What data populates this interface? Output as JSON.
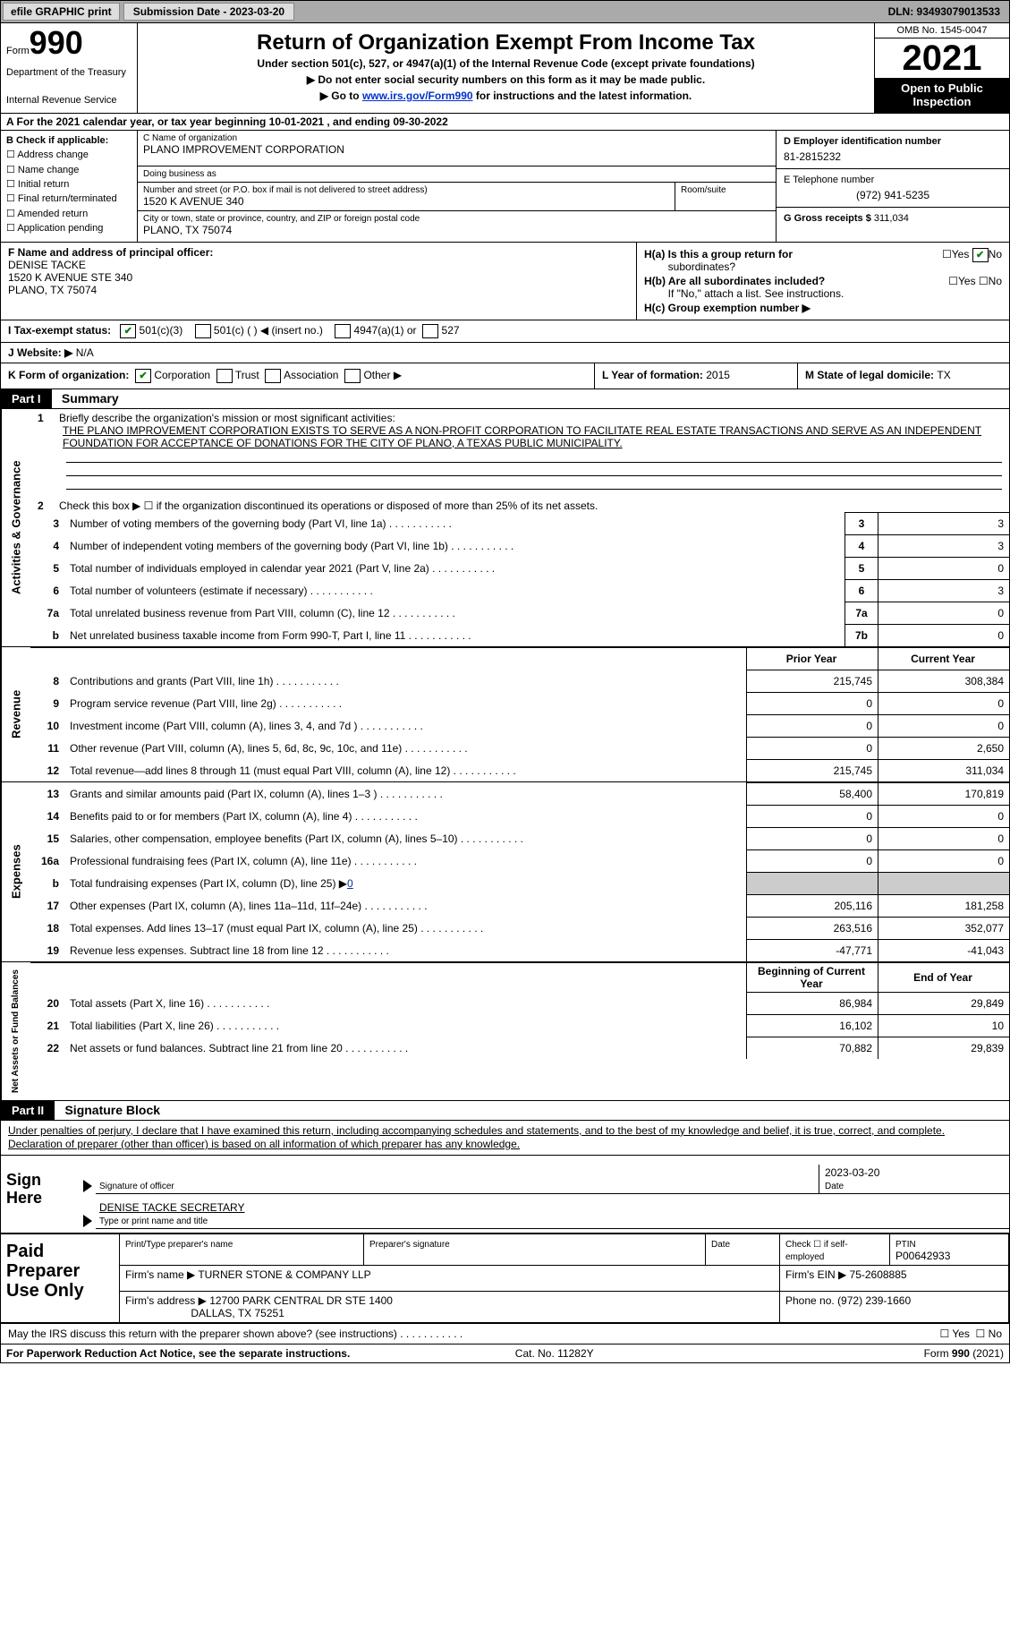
{
  "topbar": {
    "efile": "efile GRAPHIC print",
    "sub_date": "Submission Date - 2023-03-20",
    "dln": "DLN: 93493079013533"
  },
  "header": {
    "form_word": "Form",
    "form_num": "990",
    "dept": "Department of the Treasury",
    "irs": "Internal Revenue Service",
    "title": "Return of Organization Exempt From Income Tax",
    "sub": "Under section 501(c), 527, or 4947(a)(1) of the Internal Revenue Code (except private foundations)",
    "ssn": "▶ Do not enter social security numbers on this form as it may be made public.",
    "goto_pre": "▶ Go to ",
    "goto_link": "www.irs.gov/Form990",
    "goto_post": " for instructions and the latest information.",
    "omb": "OMB No. 1545-0047",
    "year": "2021",
    "inspect1": "Open to Public",
    "inspect2": "Inspection"
  },
  "A": {
    "text": "A For the 2021 calendar year, or tax year beginning 10-01-2021    , and ending 09-30-2022"
  },
  "B": {
    "label": "B Check if applicable:",
    "items": [
      "Address change",
      "Name change",
      "Initial return",
      "Final return/terminated",
      "Amended return",
      "Application pending"
    ]
  },
  "C": {
    "name_lbl": "C Name of organization",
    "name_val": "PLANO IMPROVEMENT CORPORATION",
    "dba_lbl": "Doing business as",
    "dba_val": "",
    "street_lbl": "Number and street (or P.O. box if mail is not delivered to street address)",
    "street_val": "1520 K AVENUE 340",
    "room_lbl": "Room/suite",
    "room_val": "",
    "city_lbl": "City or town, state or province, country, and ZIP or foreign postal code",
    "city_val": "PLANO, TX   75074"
  },
  "D": {
    "ein_lbl": "D Employer identification number",
    "ein_val": "81-2815232",
    "phone_lbl": "E Telephone number",
    "phone_val": "(972) 941-5235",
    "gross_lbl": "G Gross receipts $ ",
    "gross_val": "311,034"
  },
  "F": {
    "lbl": "F Name and address of principal officer:",
    "name": "DENISE TACKE",
    "addr1": "1520 K AVENUE STE 340",
    "addr2": "PLANO, TX  75074"
  },
  "H": {
    "a": "H(a)  Is this a group return for",
    "a2": "subordinates?",
    "b": "H(b)  Are all subordinates included?",
    "b2": "If \"No,\" attach a list. See instructions.",
    "c": "H(c)  Group exemption number ▶"
  },
  "I": {
    "lbl": "I    Tax-exempt status:",
    "o1": "501(c)(3)",
    "o2": "501(c) (  ) ◀ (insert no.)",
    "o3": "4947(a)(1) or",
    "o4": "527"
  },
  "J": {
    "lbl": "J   Website: ▶",
    "val": "  N/A"
  },
  "K": {
    "lbl": "K Form of organization:",
    "o1": "Corporation",
    "o2": "Trust",
    "o3": "Association",
    "o4": "Other ▶"
  },
  "L": {
    "lbl": "L Year of formation: ",
    "val": "2015"
  },
  "M": {
    "lbl": "M State of legal domicile: ",
    "val": "TX"
  },
  "part1": {
    "hdr": "Part I",
    "title": "Summary",
    "l1a": "Briefly describe the organization's mission or most significant activities:",
    "l1b": "THE PLANO IMPROVEMENT CORPORATION EXISTS TO SERVE AS A NON-PROFIT CORPORATION TO FACILITATE REAL ESTATE TRANSACTIONS AND SERVE AS AN INDEPENDENT FOUNDATION FOR ACCEPTANCE OF DONATIONS FOR THE CITY OF PLANO, A TEXAS PUBLIC MUNICIPALITY.",
    "l2": "Check this box ▶ ☐  if the organization discontinued its operations or disposed of more than 25% of its net assets.",
    "sidebar_ag": "Activities & Governance",
    "sidebar_rev": "Revenue",
    "sidebar_exp": "Expenses",
    "sidebar_na": "Net Assets or Fund Balances",
    "rows_ag": [
      {
        "n": "3",
        "d": "Number of voting members of the governing body (Part VI, line 1a)",
        "b": "3",
        "v": "3"
      },
      {
        "n": "4",
        "d": "Number of independent voting members of the governing body (Part VI, line 1b)",
        "b": "4",
        "v": "3"
      },
      {
        "n": "5",
        "d": "Total number of individuals employed in calendar year 2021 (Part V, line 2a)",
        "b": "5",
        "v": "0"
      },
      {
        "n": "6",
        "d": "Total number of volunteers (estimate if necessary)",
        "b": "6",
        "v": "3"
      },
      {
        "n": "7a",
        "d": "Total unrelated business revenue from Part VIII, column (C), line 12",
        "b": "7a",
        "v": "0"
      },
      {
        "n": "b",
        "d": "Net unrelated business taxable income from Form 990-T, Part I, line 11",
        "b": "7b",
        "v": "0"
      }
    ],
    "hdr_prior": "Prior Year",
    "hdr_curr": "Current Year",
    "rows_rev": [
      {
        "n": "8",
        "d": "Contributions and grants (Part VIII, line 1h)",
        "p": "215,745",
        "c": "308,384"
      },
      {
        "n": "9",
        "d": "Program service revenue (Part VIII, line 2g)",
        "p": "0",
        "c": "0"
      },
      {
        "n": "10",
        "d": "Investment income (Part VIII, column (A), lines 3, 4, and 7d )",
        "p": "0",
        "c": "0"
      },
      {
        "n": "11",
        "d": "Other revenue (Part VIII, column (A), lines 5, 6d, 8c, 9c, 10c, and 11e)",
        "p": "0",
        "c": "2,650"
      },
      {
        "n": "12",
        "d": "Total revenue—add lines 8 through 11 (must equal Part VIII, column (A), line 12)",
        "p": "215,745",
        "c": "311,034"
      }
    ],
    "rows_exp": [
      {
        "n": "13",
        "d": "Grants and similar amounts paid (Part IX, column (A), lines 1–3 )",
        "p": "58,400",
        "c": "170,819"
      },
      {
        "n": "14",
        "d": "Benefits paid to or for members (Part IX, column (A), line 4)",
        "p": "0",
        "c": "0"
      },
      {
        "n": "15",
        "d": "Salaries, other compensation, employee benefits (Part IX, column (A), lines 5–10)",
        "p": "0",
        "c": "0"
      },
      {
        "n": "16a",
        "d": "Professional fundraising fees (Part IX, column (A), line 11e)",
        "p": "0",
        "c": "0"
      },
      {
        "n": "b",
        "d": "Total fundraising expenses (Part IX, column (D), line 25) ▶",
        "p": "shade",
        "c": "shade",
        "extra": "0"
      },
      {
        "n": "17",
        "d": "Other expenses (Part IX, column (A), lines 11a–11d, 11f–24e)",
        "p": "205,116",
        "c": "181,258"
      },
      {
        "n": "18",
        "d": "Total expenses. Add lines 13–17 (must equal Part IX, column (A), line 25)",
        "p": "263,516",
        "c": "352,077"
      },
      {
        "n": "19",
        "d": "Revenue less expenses. Subtract line 18 from line 12",
        "p": "-47,771",
        "c": "-41,043"
      }
    ],
    "hdr_bcy": "Beginning of Current Year",
    "hdr_eoy": "End of Year",
    "rows_na": [
      {
        "n": "20",
        "d": "Total assets (Part X, line 16)",
        "p": "86,984",
        "c": "29,849"
      },
      {
        "n": "21",
        "d": "Total liabilities (Part X, line 26)",
        "p": "16,102",
        "c": "10"
      },
      {
        "n": "22",
        "d": "Net assets or fund balances. Subtract line 21 from line 20",
        "p": "70,882",
        "c": "29,839"
      }
    ]
  },
  "part2": {
    "hdr": "Part II",
    "title": "Signature Block",
    "penalties": "Under penalties of perjury, I declare that I have examined this return, including accompanying schedules and statements, and to the best of my knowledge and belief, it is true, correct, and complete. Declaration of preparer (other than officer) is based on all information of which preparer has any knowledge.",
    "sign_here": "Sign Here",
    "sig_officer_lbl": "Signature of officer",
    "sig_date": "2023-03-20",
    "date_lbl": "Date",
    "name_title": "DENISE TACKE SECRETARY",
    "name_title_lbl": "Type or print name and title",
    "paid": "Paid Preparer Use Only",
    "print_name_lbl": "Print/Type preparer's name",
    "prep_sig_lbl": "Preparer's signature",
    "check_self": "Check ☐ if self-employed",
    "ptin_lbl": "PTIN",
    "ptin_val": "P00642933",
    "firm_name_lbl": "Firm's name     ▶ ",
    "firm_name": "TURNER STONE & COMPANY LLP",
    "firm_ein_lbl": "Firm's EIN ▶ ",
    "firm_ein": "75-2608885",
    "firm_addr_lbl": "Firm's address ▶ ",
    "firm_addr1": "12700 PARK CENTRAL DR STE 1400",
    "firm_addr2": "DALLAS, TX  75251",
    "phone_lbl": "Phone no. ",
    "phone": "(972) 239-1660",
    "discuss": "May the IRS discuss this return with the preparer shown above? (see instructions)"
  },
  "footer": {
    "left": "For Paperwork Reduction Act Notice, see the separate instructions.",
    "mid": "Cat. No. 11282Y",
    "right": "Form 990 (2021)"
  }
}
